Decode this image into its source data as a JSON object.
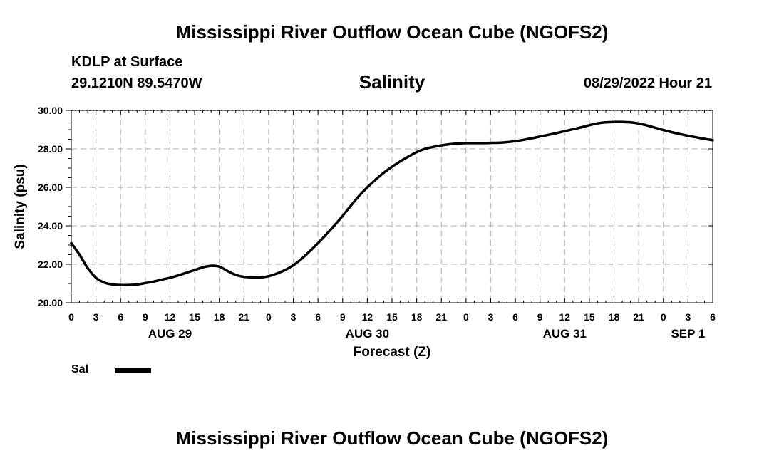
{
  "page": {
    "title": "Mississippi River Outflow Ocean Cube (NGOFS2)",
    "footer_title": "Mississippi River Outflow Ocean Cube (NGOFS2)",
    "station": "KDLP at Surface",
    "coordinates": "29.1210N  89.5470W",
    "subtitle": "Salinity",
    "datetime": "08/29/2022 Hour 21"
  },
  "legend": {
    "label": "Sal"
  },
  "chart_data": {
    "type": "line",
    "title": "Salinity",
    "xlabel": "Forecast (Z)",
    "ylabel": "Salinity (psu)",
    "xlim": [
      0,
      78
    ],
    "ylim": [
      20.0,
      30.0
    ],
    "y_ticks": [
      20.0,
      22.0,
      24.0,
      26.0,
      28.0,
      30.0
    ],
    "y_tick_labels": [
      "20.00",
      "22.00",
      "24.00",
      "26.00",
      "28.00",
      "30.00"
    ],
    "x_tick_hours": [
      0,
      3,
      6,
      9,
      12,
      15,
      18,
      21,
      24,
      27,
      30,
      33,
      36,
      39,
      42,
      45,
      48,
      51,
      54,
      57,
      60,
      63,
      66,
      69,
      72,
      75,
      78
    ],
    "x_tick_labels": [
      "0",
      "3",
      "6",
      "9",
      "12",
      "15",
      "18",
      "21",
      "0",
      "3",
      "6",
      "9",
      "12",
      "15",
      "18",
      "21",
      "0",
      "3",
      "6",
      "9",
      "12",
      "15",
      "18",
      "21",
      "0",
      "3",
      "6"
    ],
    "date_labels": [
      {
        "hour": 12,
        "label": "AUG 29"
      },
      {
        "hour": 36,
        "label": "AUG 30"
      },
      {
        "hour": 60,
        "label": "AUG 31"
      },
      {
        "hour": 75,
        "label": "SEP 1"
      }
    ],
    "grid": true,
    "color": "#000000",
    "series": [
      {
        "name": "Sal",
        "x": [
          0,
          1,
          2,
          3,
          4,
          5,
          6,
          7,
          8,
          9,
          10,
          11,
          12,
          13,
          14,
          15,
          16,
          17,
          18,
          19,
          20,
          21,
          22,
          23,
          24,
          25,
          26,
          27,
          28,
          29,
          30,
          31,
          32,
          33,
          34,
          35,
          36,
          37,
          38,
          39,
          40,
          41,
          42,
          43,
          44,
          45,
          46,
          47,
          48,
          49,
          50,
          51,
          52,
          53,
          54,
          55,
          56,
          57,
          58,
          59,
          60,
          61,
          62,
          63,
          64,
          65,
          66,
          67,
          68,
          69,
          70,
          71,
          72,
          73,
          74,
          75,
          76,
          77,
          78
        ],
        "y": [
          23.1,
          22.5,
          21.8,
          21.3,
          21.05,
          20.95,
          20.92,
          20.92,
          20.95,
          21.02,
          21.1,
          21.2,
          21.3,
          21.42,
          21.56,
          21.7,
          21.84,
          21.92,
          21.88,
          21.65,
          21.45,
          21.35,
          21.32,
          21.32,
          21.38,
          21.52,
          21.7,
          21.95,
          22.28,
          22.68,
          23.1,
          23.55,
          24.02,
          24.52,
          25.05,
          25.56,
          26.0,
          26.4,
          26.76,
          27.07,
          27.35,
          27.6,
          27.83,
          28.0,
          28.1,
          28.18,
          28.24,
          28.28,
          28.3,
          28.3,
          28.3,
          28.31,
          28.32,
          28.35,
          28.4,
          28.47,
          28.55,
          28.64,
          28.73,
          28.82,
          28.92,
          29.02,
          29.12,
          29.23,
          29.33,
          29.38,
          29.4,
          29.4,
          29.38,
          29.32,
          29.22,
          29.1,
          28.98,
          28.87,
          28.77,
          28.68,
          28.6,
          28.52,
          28.45
        ]
      }
    ]
  }
}
